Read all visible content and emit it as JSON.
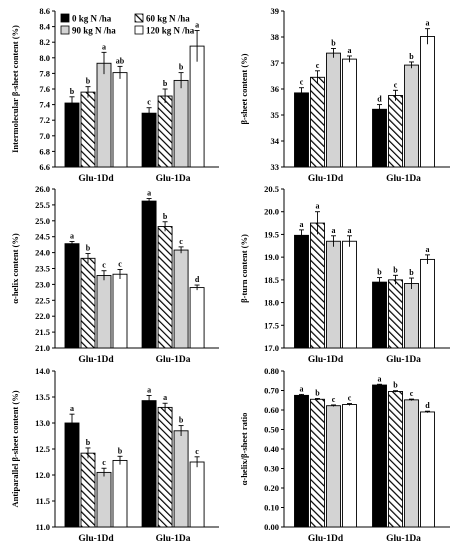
{
  "chart_data": [
    {
      "type": "bar",
      "ylabel": "Intermolecular β-sheet content (%)",
      "ylim": [
        6.6,
        8.6
      ],
      "yticks": [
        6.6,
        6.8,
        7.0,
        7.2,
        7.4,
        7.6,
        7.8,
        8.0,
        8.2,
        8.4,
        8.6
      ],
      "tick_decimals": 1,
      "categories": [
        "Glu-1Dd",
        "Glu-1Da"
      ],
      "legend": {
        "placement": "top-left"
      },
      "series": [
        {
          "name": "0 kg N /ha",
          "values": [
            7.42,
            7.29
          ],
          "errors": [
            0.08,
            0.07
          ],
          "letters": [
            "b",
            "c"
          ]
        },
        {
          "name": "60 kg N /ha",
          "values": [
            7.56,
            7.51
          ],
          "errors": [
            0.07,
            0.09
          ],
          "letters": [
            "b",
            "b"
          ]
        },
        {
          "name": "90 kg N /ha",
          "values": [
            7.93,
            7.71
          ],
          "errors": [
            0.14,
            0.1
          ],
          "letters": [
            "a",
            "b"
          ]
        },
        {
          "name": "120 kg N /ha",
          "values": [
            7.81,
            8.15
          ],
          "errors": [
            0.08,
            0.2
          ],
          "letters": [
            "ab",
            "a"
          ]
        }
      ]
    },
    {
      "type": "bar",
      "ylabel": "β-sheet content (%)",
      "ylim": [
        33,
        39
      ],
      "yticks": [
        33,
        34,
        35,
        36,
        37,
        38,
        39
      ],
      "tick_decimals": 0,
      "categories": [
        "Glu-1Dd",
        "Glu-1Da"
      ],
      "series": [
        {
          "values": [
            35.85,
            35.22
          ],
          "errors": [
            0.2,
            0.18
          ],
          "letters": [
            "c",
            "d"
          ]
        },
        {
          "values": [
            36.45,
            35.75
          ],
          "errors": [
            0.25,
            0.2
          ],
          "letters": [
            "c",
            "c"
          ]
        },
        {
          "values": [
            37.38,
            36.92
          ],
          "errors": [
            0.18,
            0.12
          ],
          "letters": [
            "b",
            "b"
          ]
        },
        {
          "values": [
            37.15,
            38.02
          ],
          "errors": [
            0.12,
            0.3
          ],
          "letters": [
            "a",
            "a"
          ]
        }
      ]
    },
    {
      "type": "bar",
      "ylabel": "α-helix content (%)",
      "ylim": [
        21,
        26
      ],
      "yticks": [
        21,
        21.5,
        22,
        22.5,
        23,
        23.5,
        24,
        24.5,
        25,
        25.5,
        26
      ],
      "tick_decimals": 1,
      "categories": [
        "Glu-1Dd",
        "Glu-1Da"
      ],
      "series": [
        {
          "values": [
            24.28,
            25.62
          ],
          "errors": [
            0.07,
            0.08
          ],
          "letters": [
            "a",
            "a"
          ]
        },
        {
          "values": [
            23.82,
            24.82
          ],
          "errors": [
            0.15,
            0.15
          ],
          "letters": [
            "b",
            "b"
          ]
        },
        {
          "values": [
            23.28,
            24.08
          ],
          "errors": [
            0.15,
            0.1
          ],
          "letters": [
            "c",
            "c"
          ]
        },
        {
          "values": [
            23.32,
            22.9
          ],
          "errors": [
            0.15,
            0.08
          ],
          "letters": [
            "c",
            "d"
          ]
        }
      ]
    },
    {
      "type": "bar",
      "ylabel": "β-turn content (%)",
      "ylim": [
        17,
        20.5
      ],
      "yticks": [
        17,
        17.5,
        18,
        18.5,
        19,
        19.5,
        20,
        20.5
      ],
      "tick_decimals": 1,
      "categories": [
        "Glu-1Dd",
        "Glu-1Da"
      ],
      "series": [
        {
          "values": [
            19.48,
            18.45
          ],
          "errors": [
            0.12,
            0.1
          ],
          "letters": [
            "a",
            "b"
          ]
        },
        {
          "values": [
            19.75,
            18.5
          ],
          "errors": [
            0.25,
            0.1
          ],
          "letters": [
            "a",
            "b"
          ]
        },
        {
          "values": [
            19.35,
            18.42
          ],
          "errors": [
            0.12,
            0.12
          ],
          "letters": [
            "a",
            "b"
          ]
        },
        {
          "values": [
            19.35,
            18.95
          ],
          "errors": [
            0.12,
            0.1
          ],
          "letters": [
            "a",
            "a"
          ]
        }
      ]
    },
    {
      "type": "bar",
      "ylabel": "Antiparallel β-sheet content (%)",
      "ylim": [
        11,
        14
      ],
      "yticks": [
        11,
        11.5,
        12,
        12.5,
        13,
        13.5,
        14
      ],
      "tick_decimals": 1,
      "categories": [
        "Glu-1Dd",
        "Glu-1Da"
      ],
      "series": [
        {
          "values": [
            13.0,
            13.43
          ],
          "errors": [
            0.17,
            0.1
          ],
          "letters": [
            "a",
            "a"
          ]
        },
        {
          "values": [
            12.42,
            13.3
          ],
          "errors": [
            0.1,
            0.08
          ],
          "letters": [
            "b",
            "a"
          ]
        },
        {
          "values": [
            12.05,
            12.85
          ],
          "errors": [
            0.08,
            0.1
          ],
          "letters": [
            "c",
            "b"
          ]
        },
        {
          "values": [
            12.28,
            12.25
          ],
          "errors": [
            0.08,
            0.1
          ],
          "letters": [
            "b",
            "c"
          ]
        }
      ]
    },
    {
      "type": "bar",
      "ylabel": "α-helix/β-sheet ratio",
      "ylim": [
        0,
        0.8
      ],
      "yticks": [
        0,
        0.1,
        0.2,
        0.3,
        0.4,
        0.5,
        0.6,
        0.7,
        0.8
      ],
      "tick_decimals": 2,
      "categories": [
        "Glu-1Dd",
        "Glu-1Da"
      ],
      "series": [
        {
          "values": [
            0.675,
            0.728
          ],
          "errors": [
            0.005,
            0.004
          ],
          "letters": [
            "a",
            "a"
          ]
        },
        {
          "values": [
            0.655,
            0.695
          ],
          "errors": [
            0.004,
            0.004
          ],
          "letters": [
            "b",
            "b"
          ]
        },
        {
          "values": [
            0.622,
            0.652
          ],
          "errors": [
            0.004,
            0.004
          ],
          "letters": [
            "c",
            "c"
          ]
        },
        {
          "values": [
            0.628,
            0.59
          ],
          "errors": [
            0.005,
            0.004
          ],
          "letters": [
            "c",
            "d"
          ]
        }
      ]
    }
  ],
  "fills": [
    "#000000",
    "hatch",
    "#d3d3d3",
    "#ffffff"
  ]
}
